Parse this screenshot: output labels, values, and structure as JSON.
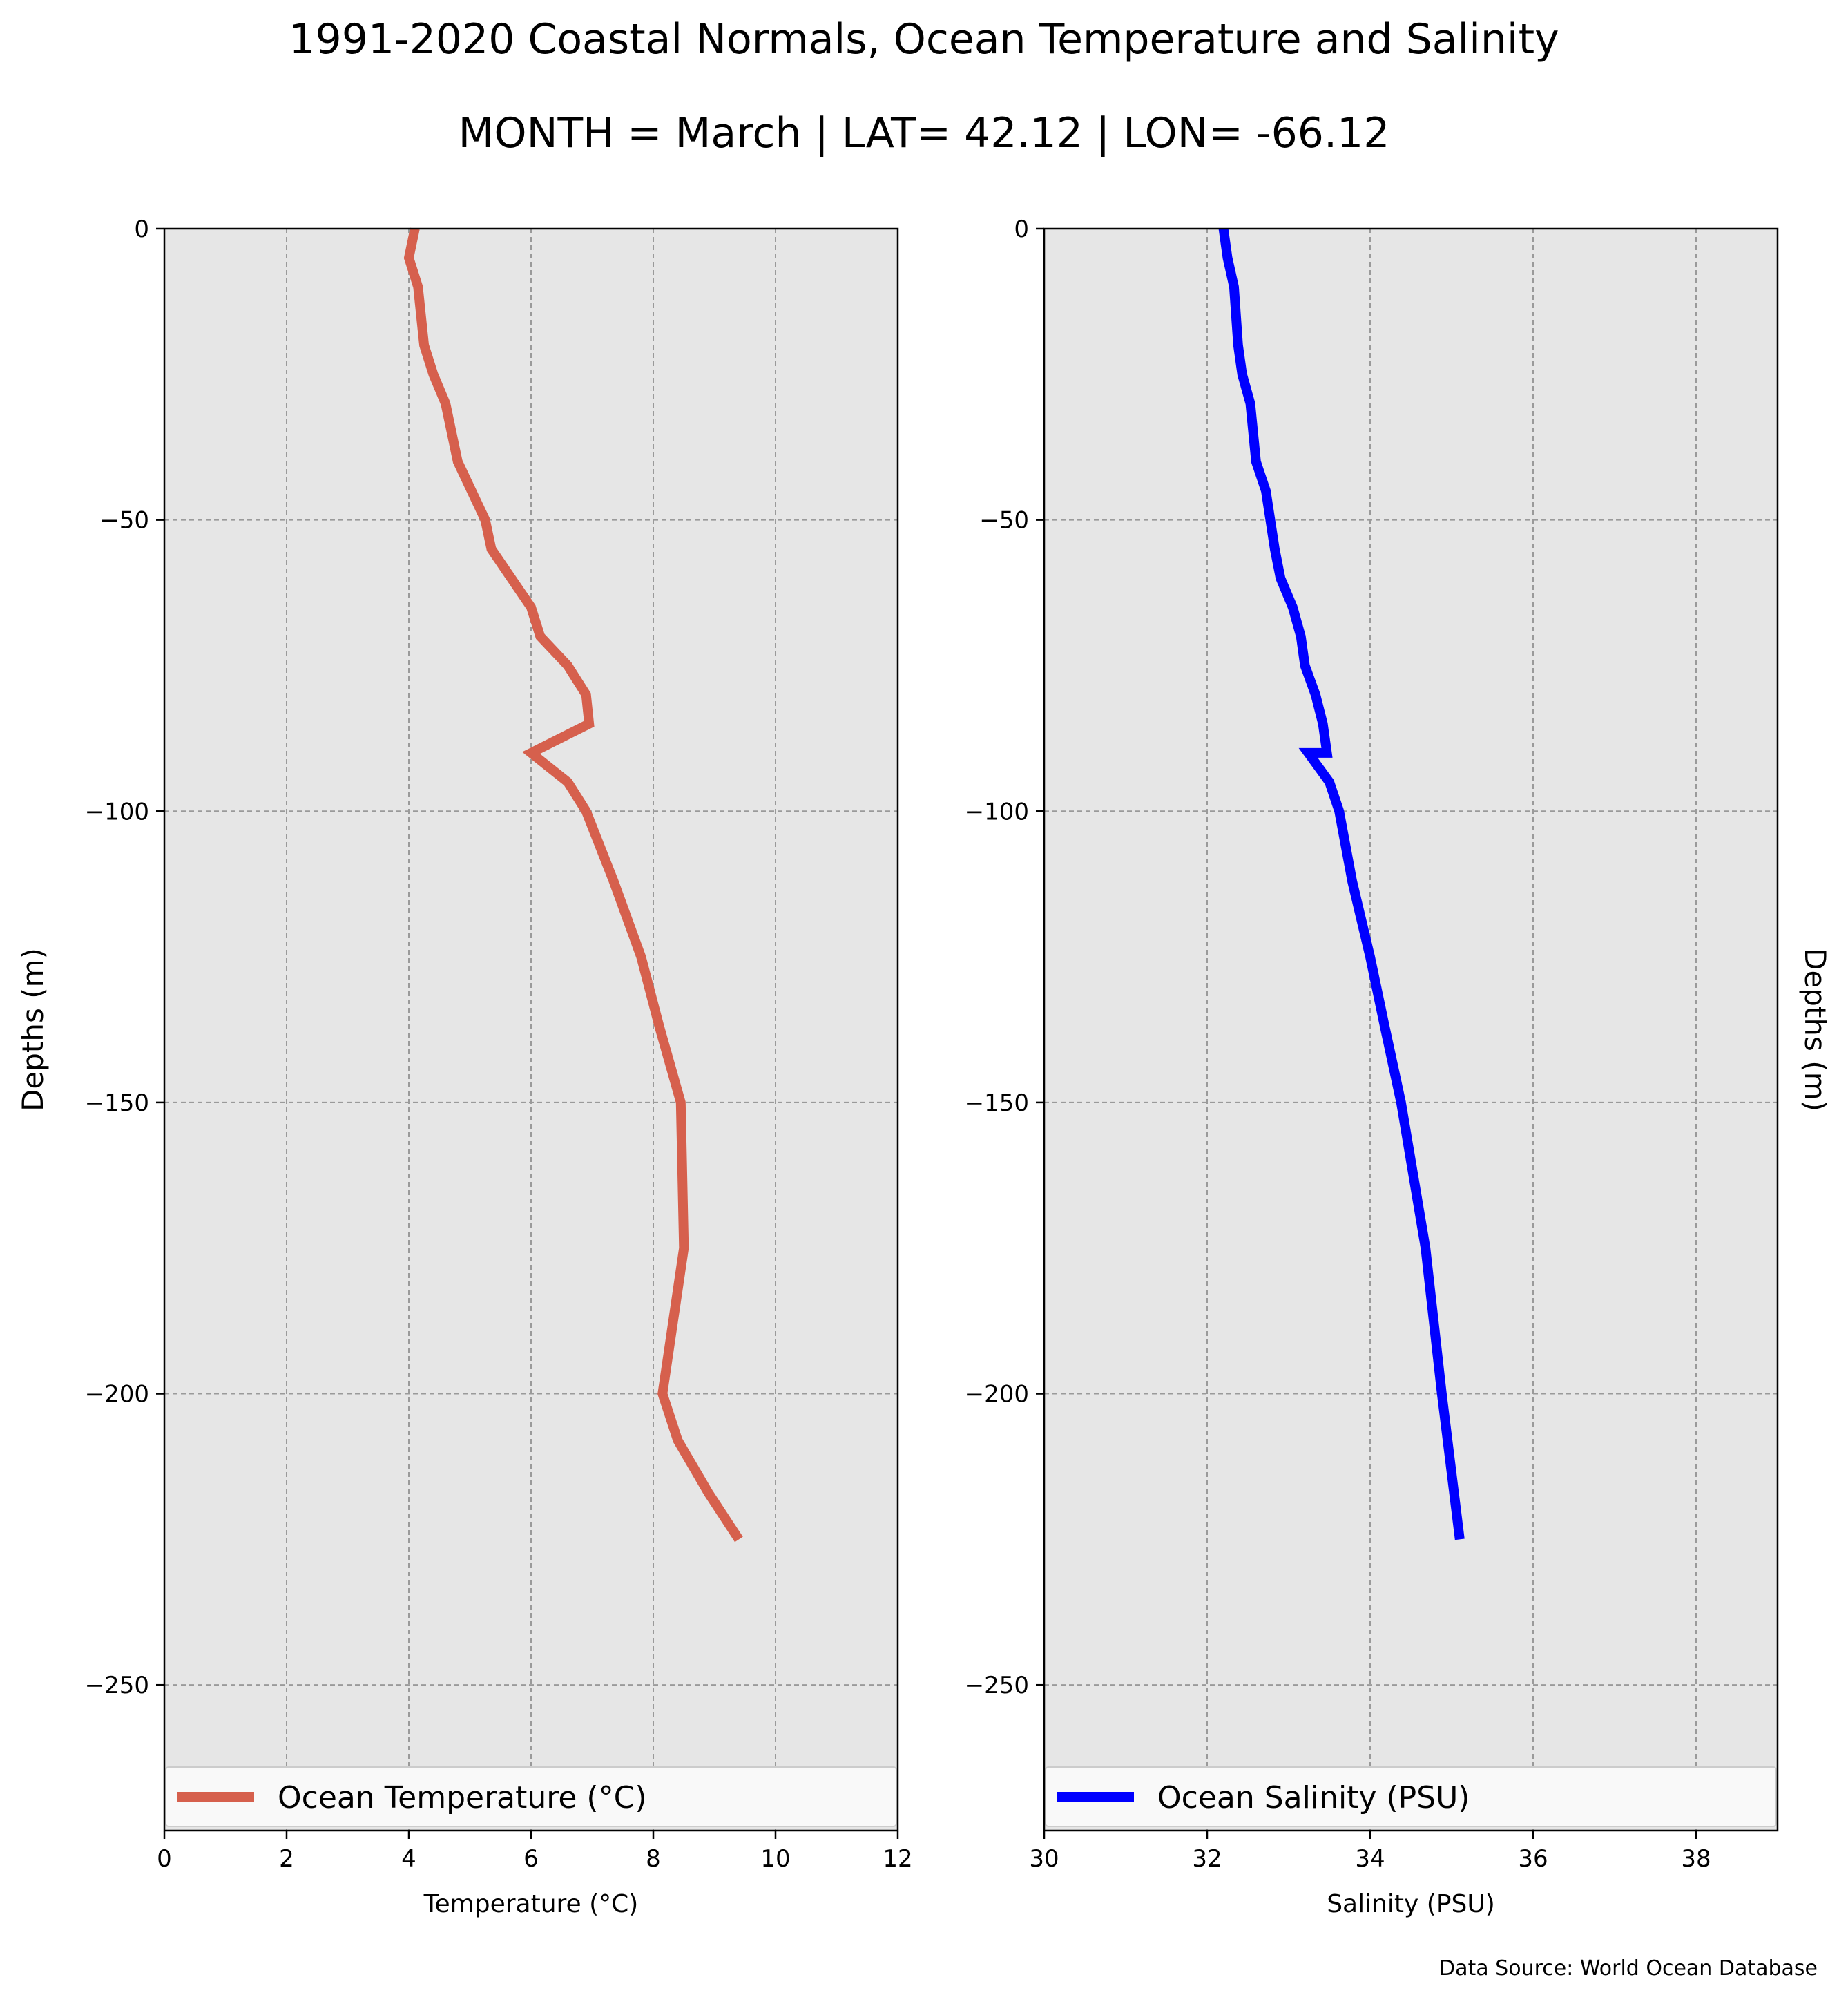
{
  "title": "1991-2020 Coastal Normals, Ocean Temperature and Salinity",
  "subtitle": "MONTH = March | LAT= 42.12 | LON= -66.12",
  "source": "Data Source: World Ocean Database",
  "chart_data": [
    {
      "type": "line",
      "xlabel": "Temperature ($^\\circ$C)",
      "xlabel_display": "Temperature (°C)",
      "ylabel": "Depths (m)",
      "xlim": [
        0,
        12
      ],
      "ylim": [
        -275,
        0
      ],
      "xticks": [
        0,
        2,
        4,
        6,
        8,
        10,
        12
      ],
      "yticks": [
        0,
        -50,
        -100,
        -150,
        -200,
        -250
      ],
      "ytick_labels": [
        "0",
        "−50",
        "−100",
        "−150",
        "−200",
        "−250"
      ],
      "grid": true,
      "legend_position": "lower center",
      "color": "#d6604d",
      "series": [
        {
          "name": "Ocean Temperature (°C)",
          "x": [
            4.1,
            4.0,
            4.15,
            4.25,
            4.4,
            4.6,
            4.8,
            5.25,
            5.35,
            6.0,
            6.15,
            6.6,
            6.9,
            6.95,
            6.0,
            6.6,
            6.9,
            7.35,
            7.8,
            8.1,
            8.45,
            8.5,
            8.15,
            8.4,
            8.9,
            9.4
          ],
          "y": [
            0,
            -5,
            -10,
            -20,
            -25,
            -30,
            -40,
            -50,
            -55,
            -65,
            -70,
            -75,
            -80,
            -85,
            -90,
            -95,
            -100,
            -112,
            -125,
            -137,
            -150,
            -175,
            -200,
            -208,
            -217,
            -225
          ]
        }
      ]
    },
    {
      "type": "line",
      "xlabel": "Salinity (PSU)",
      "ylabel": "Depths (m)",
      "xlim": [
        30,
        39
      ],
      "ylim": [
        -275,
        0
      ],
      "xticks": [
        30,
        32,
        34,
        36,
        38
      ],
      "yticks": [
        0,
        -50,
        -100,
        -150,
        -200,
        -250
      ],
      "ytick_labels": [
        "0",
        "−50",
        "−100",
        "−150",
        "−200",
        "−250"
      ],
      "grid": true,
      "legend_position": "lower center",
      "color": "#0000ff",
      "series": [
        {
          "name": "Ocean Salinity (PSU)",
          "x": [
            32.2,
            32.25,
            32.33,
            32.38,
            32.43,
            32.53,
            32.6,
            32.72,
            32.83,
            32.9,
            33.05,
            33.15,
            33.2,
            33.33,
            33.42,
            33.47,
            33.24,
            33.5,
            33.62,
            33.78,
            34.0,
            34.18,
            34.38,
            34.68,
            34.88,
            35.1
          ],
          "y": [
            0,
            -5,
            -10,
            -20,
            -25,
            -30,
            -40,
            -45,
            -55,
            -60,
            -65,
            -70,
            -75,
            -80,
            -85,
            -90,
            -90,
            -95,
            -100,
            -112,
            -125,
            -137,
            -150,
            -175,
            -200,
            -225
          ]
        }
      ]
    }
  ]
}
